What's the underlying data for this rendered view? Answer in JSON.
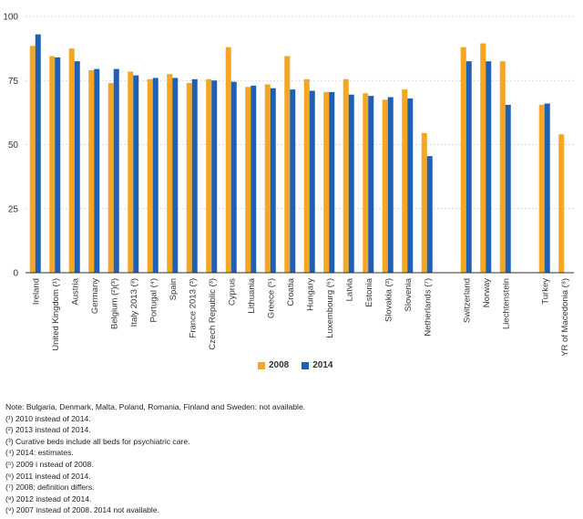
{
  "chart_data": {
    "type": "bar",
    "ylim": [
      0,
      100
    ],
    "yticks": [
      0,
      25,
      50,
      75,
      100
    ],
    "grid": true,
    "legend_position": "bottom",
    "colors": {
      "2008": "#f5a623",
      "2014": "#1f5fb4"
    },
    "categories": [
      "Ireland",
      "United Kingdom (¹)",
      "Austria",
      "Germany",
      "Belgium (²)(³)",
      "Italy 2013 (³)",
      "Portugal (⁴)",
      "Spain",
      "France 2013 (³)",
      "Czech Republic (³)",
      "Cyprus",
      "Lithuania",
      "Greece (⁵)",
      "Croatia",
      "Hungary",
      "Luxembourg (⁶)",
      "Latvia",
      "Estonia",
      "Slovakia (³)",
      "Slovenia",
      "Netherlands (⁷)",
      "",
      "Switzerland",
      "Norway",
      "Liechtenstein",
      "",
      "Turkey",
      "FYR of Macedonia (⁸)"
    ],
    "series": [
      {
        "name": "2008",
        "values": [
          88.5,
          84.5,
          87.5,
          79,
          74,
          78.5,
          75.5,
          77.5,
          74,
          75.5,
          88,
          72.5,
          73.5,
          84.5,
          75.5,
          70.5,
          75.5,
          70,
          67.5,
          71.5,
          54.5,
          null,
          88,
          89.5,
          82.5,
          null,
          65.5,
          54
        ]
      },
      {
        "name": "2014",
        "values": [
          93,
          84,
          82.5,
          79.5,
          79.5,
          77,
          76,
          76,
          75.5,
          75,
          74.5,
          73,
          72,
          71.5,
          71,
          70.5,
          69.5,
          69,
          68.5,
          68,
          45.5,
          null,
          82.5,
          82.5,
          65.5,
          null,
          66,
          null
        ]
      }
    ]
  },
  "legend": {
    "items": [
      {
        "label": "2008"
      },
      {
        "label": "2014"
      }
    ]
  },
  "notes": [
    "Note: Bulgaria, Denmark, Malta, Poland, Romania, Finland and Sweden: not available.",
    "(¹) 2010 instead of 2014.",
    "(²) 2013 instead of 2014.",
    "(³) Curative beds include all beds for psychiatric care.",
    "(⁴) 2014: estimates.",
    "(⁵) 2009 i nstead of 2008.",
    "(⁶) 2011 instead of 2014.",
    "(⁷) 2008: definition differs.",
    "(⁸) 2012 instead of 2014.",
    "(⁹) 2007 instead of 2008. 2014 not available."
  ]
}
